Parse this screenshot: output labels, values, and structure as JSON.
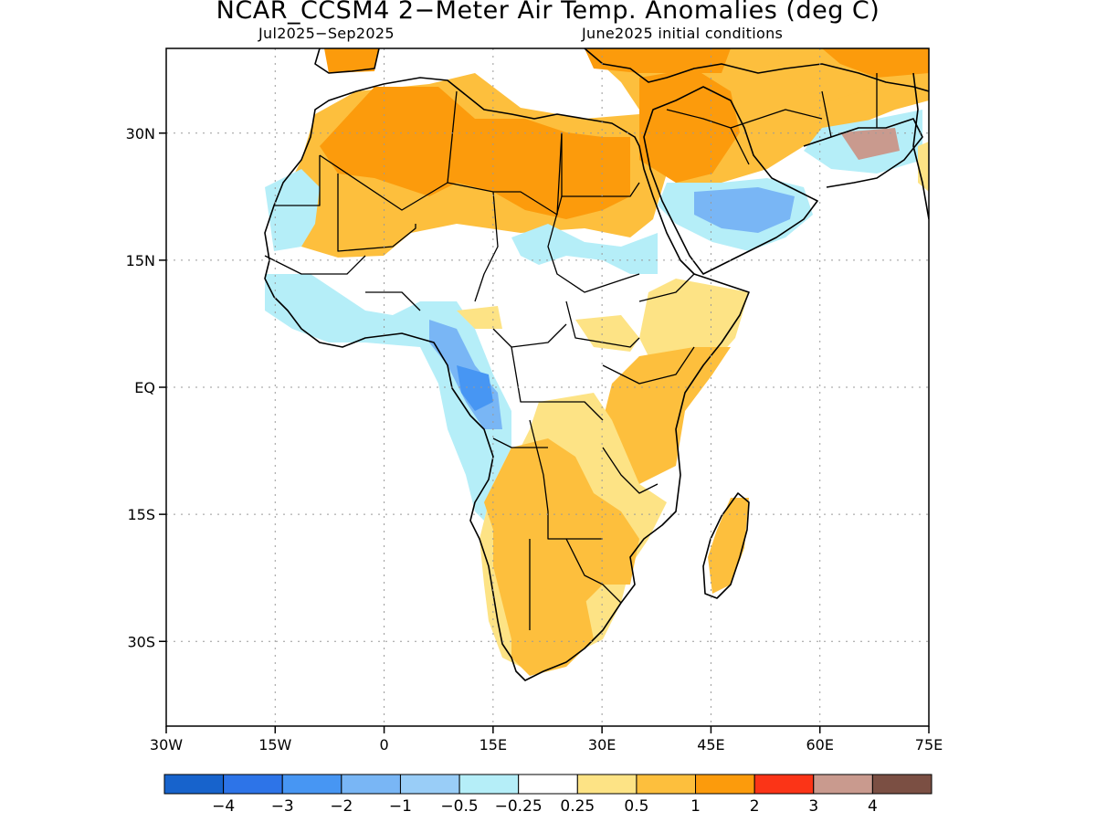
{
  "title": "NCAR_CCSM4 2−Meter Air Temp. Anomalies (deg C)",
  "subtitle_left": "Jul2025−Sep2025",
  "subtitle_right": "June2025 initial conditions",
  "x_axis": {
    "tick_labels": [
      "30W",
      "15W",
      "0",
      "15E",
      "30E",
      "45E",
      "60E",
      "75E"
    ],
    "tick_values": [
      -30,
      -15,
      0,
      15,
      30,
      45,
      60,
      75
    ]
  },
  "y_axis": {
    "tick_labels": [
      "30N",
      "15N",
      "EQ",
      "15S",
      "30S"
    ],
    "tick_values": [
      30,
      15,
      0,
      -15,
      -30
    ]
  },
  "map_extent": {
    "lon": [
      -30,
      75
    ],
    "lat": [
      -40,
      40
    ]
  },
  "grid": true,
  "colorbar": {
    "colors": [
      "#1763cc",
      "#2d74e8",
      "#4796f3",
      "#79b6f5",
      "#99cdf7",
      "#b5eef8",
      "#ffffff",
      "#fde385",
      "#fdbf3d",
      "#fc9b0c",
      "#fb3417",
      "#c99a8e",
      "#7b4f43"
    ],
    "labels": [
      "−4",
      "−3",
      "−2",
      "−1",
      "−0.5",
      "−0.25",
      "0.25",
      "0.5",
      "1",
      "2",
      "3",
      "4"
    ]
  },
  "anomaly_levels": {
    "strong_warm": "#fc9b0c",
    "moderate_warm": "#fdbf3d",
    "weak_warm": "#fde385",
    "weak_cool": "#b5eef8",
    "moderate_cool": "#99cdf7",
    "strong_cool": "#79b6f5",
    "very_strong_cool": "#4796f3",
    "neutral": "#ffffff",
    "outer_warm": "#c99a8e"
  }
}
